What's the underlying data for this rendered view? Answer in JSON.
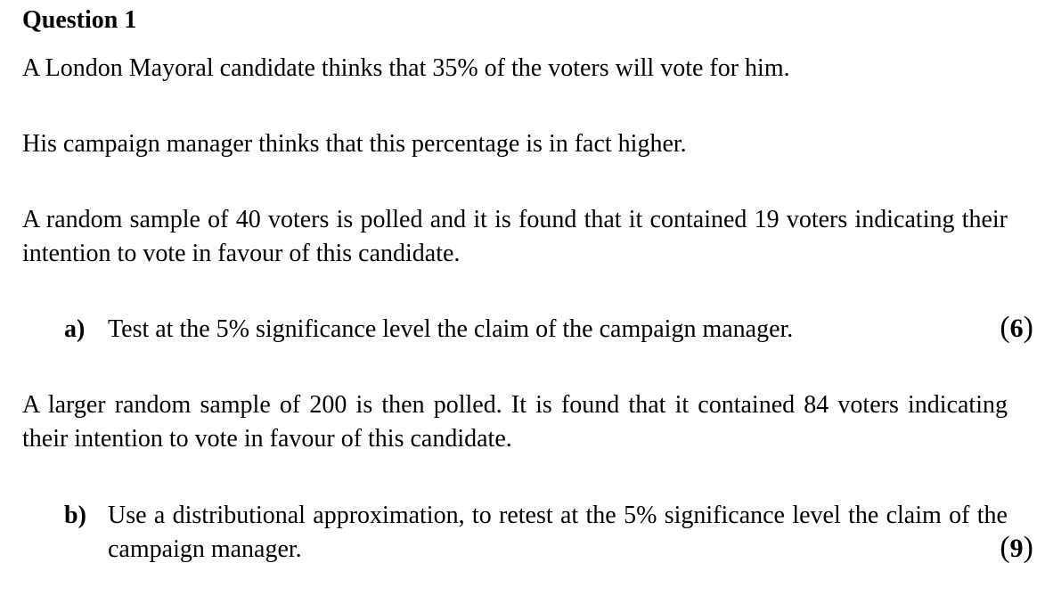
{
  "question": {
    "title": "Question 1",
    "paragraphs": [
      "A London Mayoral candidate thinks that 35% of the voters will vote for him.",
      "His campaign manager thinks that this percentage is in fact higher.",
      "A random sample of 40 voters is polled and it is found that it contained 19 voters indicating their intention to vote in favour of this candidate.",
      "A larger random sample of 200 is then polled. It is found that it contained 84 voters indicating their intention to vote in favour of this candidate."
    ],
    "parts": [
      {
        "label": "a)",
        "text": "Test at the 5% significance level the claim of the campaign manager.",
        "marks": "6"
      },
      {
        "label": "b)",
        "text": "Use a distributional approximation, to retest at the 5% significance level the claim of the campaign manager.",
        "marks": "9"
      }
    ]
  }
}
